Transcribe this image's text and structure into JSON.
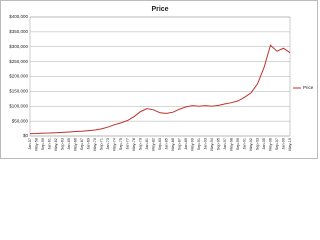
{
  "chart_data": {
    "type": "line",
    "title": "Price",
    "categories": [
      "Jan-57",
      "May-58",
      "Sep-59",
      "Jan-61",
      "May-62",
      "Sep-63",
      "Jan-65",
      "May-66",
      "Sep-67",
      "Jan-69",
      "May-70",
      "Sep-71",
      "Jan-73",
      "May-74",
      "Sep-75",
      "Jan-77",
      "May-78",
      "Sep-79",
      "Jan-81",
      "May-82",
      "Sep-83",
      "Jan-85",
      "May-86",
      "Sep-87",
      "Jan-89",
      "May-90",
      "Sep-91",
      "Jan-93",
      "May-94",
      "Sep-95",
      "Jan-97",
      "May-98",
      "Sep-99",
      "Jan-01",
      "May-02",
      "Sep-03",
      "Jan-05",
      "May-06",
      "Sep-07",
      "Jan-09",
      "May-10"
    ],
    "series": [
      {
        "name": "Price",
        "color": "#c0302b",
        "values": [
          8000,
          8500,
          9500,
          10000,
          11000,
          12000,
          13500,
          15000,
          16000,
          18000,
          20000,
          24000,
          30000,
          38000,
          44000,
          52000,
          65000,
          82000,
          92000,
          88000,
          78000,
          76000,
          80000,
          90000,
          98000,
          102000,
          100000,
          102000,
          100000,
          103000,
          108000,
          112000,
          118000,
          130000,
          145000,
          175000,
          230000,
          305000,
          285000,
          295000,
          280000
        ]
      }
    ],
    "ylim": [
      0,
      400000
    ],
    "yticks": [
      {
        "value": 0,
        "label": "$0"
      },
      {
        "value": 50000,
        "label": "$50,000"
      },
      {
        "value": 100000,
        "label": "$100,000"
      },
      {
        "value": 150000,
        "label": "$150,000"
      },
      {
        "value": 200000,
        "label": "$200,000"
      },
      {
        "value": 250000,
        "label": "$250,000"
      },
      {
        "value": 300000,
        "label": "$300,000"
      },
      {
        "value": 350000,
        "label": "$350,000"
      },
      {
        "value": 400000,
        "label": "$400,000"
      }
    ],
    "grid": true,
    "legend": "right"
  }
}
